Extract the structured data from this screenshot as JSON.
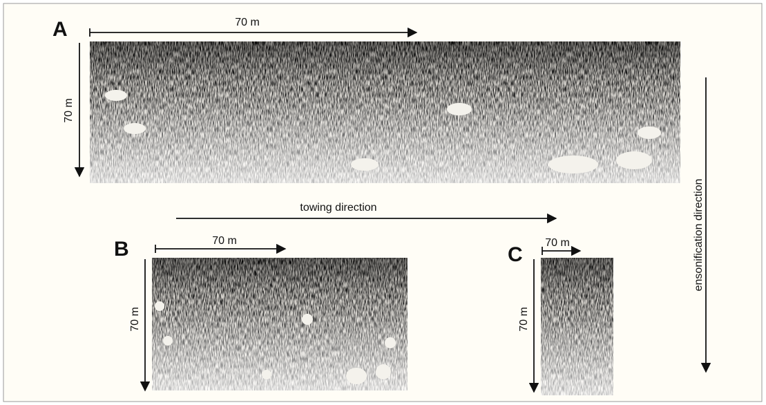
{
  "panels": [
    {
      "label": "A",
      "scale_x": "70 m",
      "scale_y": "70 m"
    },
    {
      "label": "B",
      "scale_x": "70 m",
      "scale_y": "70 m"
    },
    {
      "label": "C",
      "scale_x": "70 m",
      "scale_y": "70 m"
    }
  ],
  "towing": "towing direction",
  "ensonification": "ensonification direction"
}
